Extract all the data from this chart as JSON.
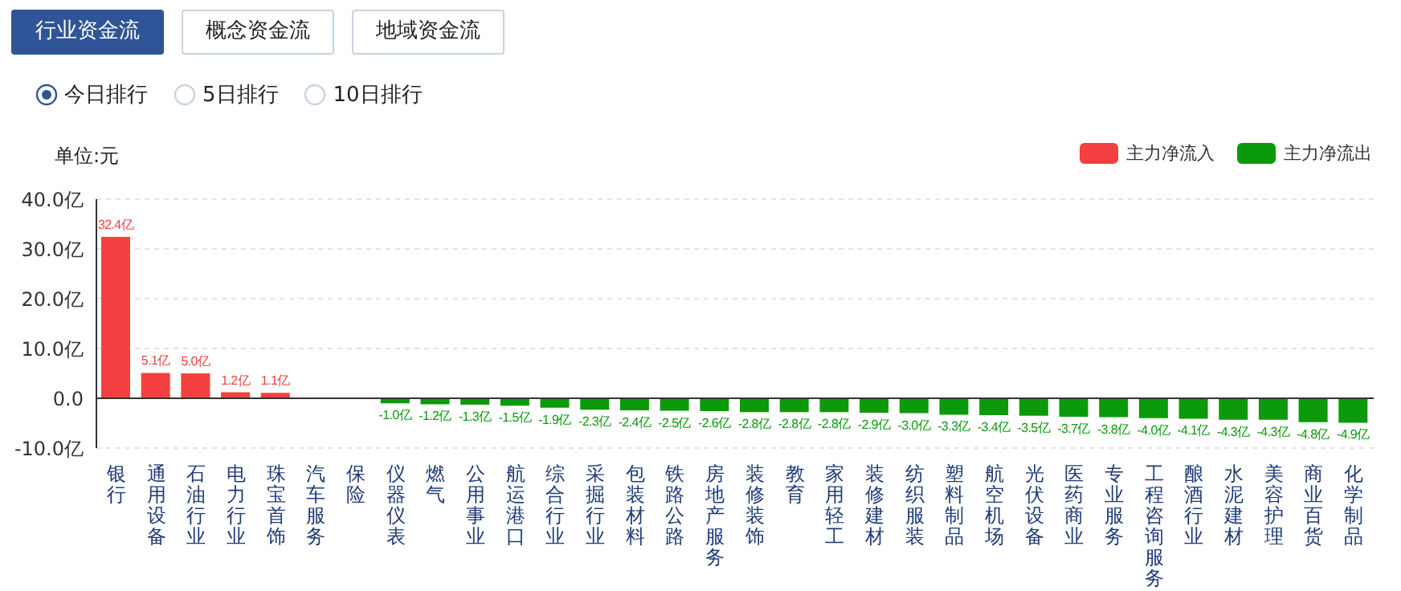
{
  "chart_data": {
    "type": "bar",
    "ylabel": "单位:元",
    "annotations": [
      "行业资金流",
      "概念资金流",
      "地域资金流",
      "今日排行",
      "5日排行",
      "10日排行"
    ],
    "categories": [
      "银行",
      "通用设备",
      "石油行业",
      "电力行业",
      "珠宝首饰",
      "汽车服务",
      "保险",
      "仪器仪表",
      "燃气",
      "公用事业",
      "航运港口",
      "综合行业",
      "采掘行业",
      "包装材料",
      "铁路公路",
      "房地产服务",
      "装修装饰",
      "教育",
      "家用轻工",
      "装修建材",
      "纺织服装",
      "塑料制品",
      "航空机场",
      "光伏设备",
      "医药商业",
      "专业服务",
      "工程咨询服务",
      "酿酒行业",
      "水泥建材",
      "美容护理",
      "商业百货",
      "化学制品"
    ],
    "stacked": true,
    "series": [
      {
        "name": "主力净流入",
        "color": "#f44040",
        "values": [
          32.4,
          5.1,
          5.0,
          1.2,
          1.1,
          0,
          0,
          null,
          null,
          null,
          null,
          null,
          null,
          null,
          null,
          null,
          null,
          null,
          null,
          null,
          null,
          null,
          null,
          null,
          null,
          null,
          null,
          null,
          null,
          null,
          null,
          null
        ],
        "value_labels": [
          "32.4亿",
          "5.1亿",
          "5.0亿",
          "1.2亿",
          "1.1亿",
          null,
          null,
          null,
          null,
          null,
          null,
          null,
          null,
          null,
          null,
          null,
          null,
          null,
          null,
          null,
          null,
          null,
          null,
          null,
          null,
          null,
          null,
          null,
          null,
          null,
          null,
          null
        ]
      },
      {
        "name": "主力净流出",
        "color": "#0b9a0b",
        "values": [
          null,
          null,
          null,
          null,
          null,
          null,
          null,
          -1.0,
          -1.2,
          -1.3,
          -1.5,
          -1.9,
          -2.3,
          -2.4,
          -2.5,
          -2.6,
          -2.8,
          -2.8,
          -2.8,
          -2.9,
          -3.0,
          -3.3,
          -3.4,
          -3.5,
          -3.7,
          -3.8,
          -4.0,
          -4.1,
          -4.3,
          -4.3,
          -4.8,
          -4.9
        ],
        "value_labels": [
          null,
          null,
          null,
          null,
          null,
          null,
          null,
          "-1.0亿",
          "-1.2亿",
          "-1.3亿",
          "-1.5亿",
          "-1.9亿",
          "-2.3亿",
          "-2.4亿",
          "-2.5亿",
          "-2.6亿",
          "-2.8亿",
          "-2.8亿",
          "-2.8亿",
          "-2.9亿",
          "-3.0亿",
          "-3.3亿",
          "-3.4亿",
          "-3.5亿",
          "-3.7亿",
          "-3.8亿",
          "-4.0亿",
          "-4.1亿",
          "-4.3亿",
          "-4.3亿",
          "-4.8亿",
          "-4.9亿"
        ]
      }
    ],
    "ylim": [
      -10,
      40
    ],
    "yticks": [
      {
        "value": -10,
        "label": "-10.0亿"
      },
      {
        "value": 0,
        "label": "0.0"
      },
      {
        "value": 10,
        "label": "10.0亿"
      },
      {
        "value": 20,
        "label": "20.0亿"
      },
      {
        "value": 30,
        "label": "30.0亿"
      },
      {
        "value": 40,
        "label": "40.0亿"
      }
    ],
    "grid": "y",
    "legend": "top right"
  }
}
